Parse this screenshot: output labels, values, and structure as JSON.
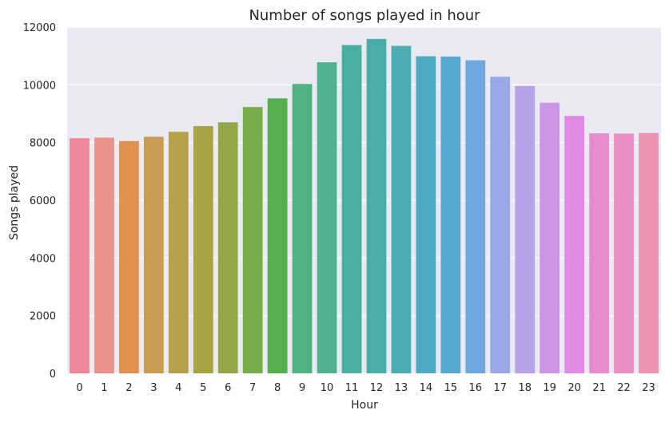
{
  "chart_data": {
    "type": "bar",
    "title": "Number of songs played in hour",
    "xlabel": "Hour",
    "ylabel": "Songs played",
    "categories": [
      "0",
      "1",
      "2",
      "3",
      "4",
      "5",
      "6",
      "7",
      "8",
      "9",
      "10",
      "11",
      "12",
      "13",
      "14",
      "15",
      "16",
      "17",
      "18",
      "19",
      "20",
      "21",
      "22",
      "23"
    ],
    "values": [
      8150,
      8170,
      8050,
      8200,
      8370,
      8570,
      8700,
      9230,
      9530,
      10030,
      10780,
      11380,
      11590,
      11350,
      10990,
      10980,
      10850,
      10280,
      9960,
      9380,
      8920,
      8320,
      8310,
      8330
    ],
    "ylim": [
      0,
      12000
    ],
    "yticks": [
      0,
      2000,
      4000,
      6000,
      8000,
      10000,
      12000
    ],
    "grid": true,
    "style": {
      "background": "#eaeaf2",
      "grid_color": "#ffffff",
      "bar_colors": [
        "#f0869a",
        "#e8928a",
        "#e0914f",
        "#c89c51",
        "#b6a04a",
        "#a5a546",
        "#93a748",
        "#76ad49",
        "#53b04f",
        "#50b27f",
        "#4fb28f",
        "#4aafa0",
        "#4aaea7",
        "#4bacb1",
        "#4eaac0",
        "#56a8d2",
        "#70a8e2",
        "#9ba8e7",
        "#b6a2e6",
        "#cd95e5",
        "#e289e4",
        "#e88dcc",
        "#ea8fc1",
        "#ed92b2"
      ]
    }
  }
}
